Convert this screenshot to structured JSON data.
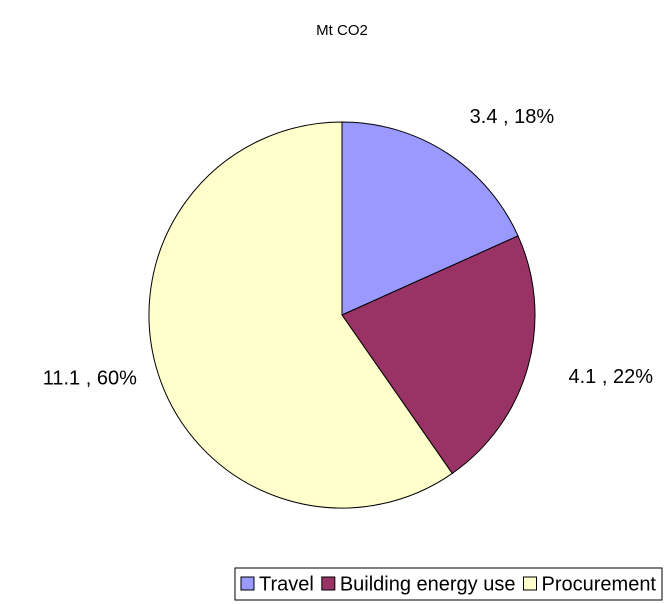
{
  "chart_data": {
    "type": "pie",
    "title": "Mt CO2",
    "categories": [
      "Travel",
      "Building energy use",
      "Procurement"
    ],
    "values": [
      3.4,
      4.1,
      11.1
    ],
    "value_labels": [
      "3.4 , 18%",
      "4.1 , 22%",
      "11.1 , 60%"
    ],
    "colors": [
      "#9999ff",
      "#993366",
      "#ffffcc"
    ],
    "legend": "bottom"
  }
}
